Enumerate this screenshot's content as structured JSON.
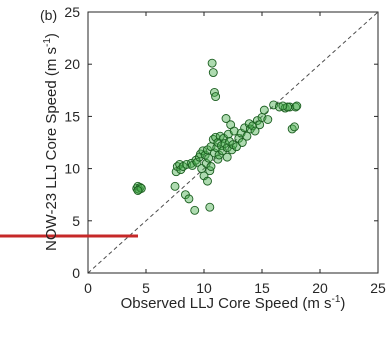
{
  "chart_data": {
    "type": "scatter",
    "panel_label": "(b)",
    "xlabel_main": "Observed LLJ Core Speed (m s",
    "ylabel_main": "NOW-23 LLJ Core Speed (m s",
    "unit_exponent": "-1",
    "unit_close": ")",
    "xlim": [
      0,
      25
    ],
    "ylim": [
      0,
      25
    ],
    "xticks": [
      "0",
      "5",
      "10",
      "15",
      "20",
      "25"
    ],
    "yticks": [
      "0",
      "5",
      "10",
      "15",
      "20",
      "25"
    ],
    "grid": false,
    "reference_line": "1:1 dashed diagonal",
    "annotation": "red horizontal line at left edge, y ≈ 3.7",
    "marker_fill": "#4caf50",
    "marker_edge": "#1b5e20",
    "annotation_color": "#c62828",
    "points": [
      [
        4.2,
        8.1
      ],
      [
        4.3,
        8.3
      ],
      [
        4.4,
        8.0
      ],
      [
        4.5,
        8.2
      ],
      [
        4.6,
        8.1
      ],
      [
        4.3,
        7.9
      ],
      [
        7.5,
        8.3
      ],
      [
        7.6,
        9.7
      ],
      [
        7.7,
        10.2
      ],
      [
        7.9,
        10.4
      ],
      [
        8.0,
        9.9
      ],
      [
        8.2,
        10.2
      ],
      [
        8.4,
        7.5
      ],
      [
        8.5,
        10.4
      ],
      [
        8.7,
        7.1
      ],
      [
        8.9,
        10.5
      ],
      [
        9.0,
        10.3
      ],
      [
        9.2,
        6.0
      ],
      [
        9.3,
        10.8
      ],
      [
        9.4,
        10.6
      ],
      [
        9.6,
        11.1
      ],
      [
        9.7,
        11.4
      ],
      [
        9.8,
        10.0
      ],
      [
        9.9,
        11.7
      ],
      [
        10.0,
        9.3
      ],
      [
        10.1,
        11.3
      ],
      [
        10.2,
        10.5
      ],
      [
        10.3,
        8.8
      ],
      [
        10.3,
        11.8
      ],
      [
        10.4,
        11.0
      ],
      [
        10.5,
        6.3
      ],
      [
        10.5,
        9.8
      ],
      [
        10.6,
        12.1
      ],
      [
        10.6,
        10.2
      ],
      [
        10.7,
        20.1
      ],
      [
        10.8,
        19.2
      ],
      [
        10.8,
        12.8
      ],
      [
        10.9,
        11.5
      ],
      [
        10.9,
        17.3
      ],
      [
        11.0,
        16.9
      ],
      [
        11.0,
        13.0
      ],
      [
        11.1,
        12.0
      ],
      [
        11.2,
        10.9
      ],
      [
        11.2,
        12.5
      ],
      [
        11.3,
        11.3
      ],
      [
        11.4,
        13.1
      ],
      [
        11.5,
        12.2
      ],
      [
        11.6,
        11.7
      ],
      [
        11.7,
        12.9
      ],
      [
        11.8,
        12.4
      ],
      [
        11.9,
        14.8
      ],
      [
        12.0,
        12.0
      ],
      [
        12.0,
        11.1
      ],
      [
        12.1,
        13.3
      ],
      [
        12.2,
        12.6
      ],
      [
        12.3,
        14.2
      ],
      [
        12.4,
        11.8
      ],
      [
        12.5,
        12.3
      ],
      [
        12.6,
        13.6
      ],
      [
        12.8,
        12.1
      ],
      [
        13.0,
        12.9
      ],
      [
        13.2,
        13.4
      ],
      [
        13.3,
        12.5
      ],
      [
        13.5,
        13.9
      ],
      [
        13.7,
        13.1
      ],
      [
        13.9,
        14.3
      ],
      [
        14.0,
        13.8
      ],
      [
        14.2,
        14.1
      ],
      [
        14.4,
        13.6
      ],
      [
        14.6,
        14.6
      ],
      [
        14.8,
        14.2
      ],
      [
        15.0,
        14.9
      ],
      [
        15.2,
        15.6
      ],
      [
        15.5,
        14.7
      ],
      [
        16.0,
        16.1
      ],
      [
        16.5,
        15.9
      ],
      [
        17.0,
        15.8
      ],
      [
        17.4,
        15.9
      ],
      [
        17.6,
        13.8
      ],
      [
        17.8,
        14.0
      ],
      [
        17.9,
        15.9
      ],
      [
        18.0,
        16.0
      ],
      [
        17.2,
        15.9
      ],
      [
        16.8,
        16.0
      ]
    ]
  }
}
